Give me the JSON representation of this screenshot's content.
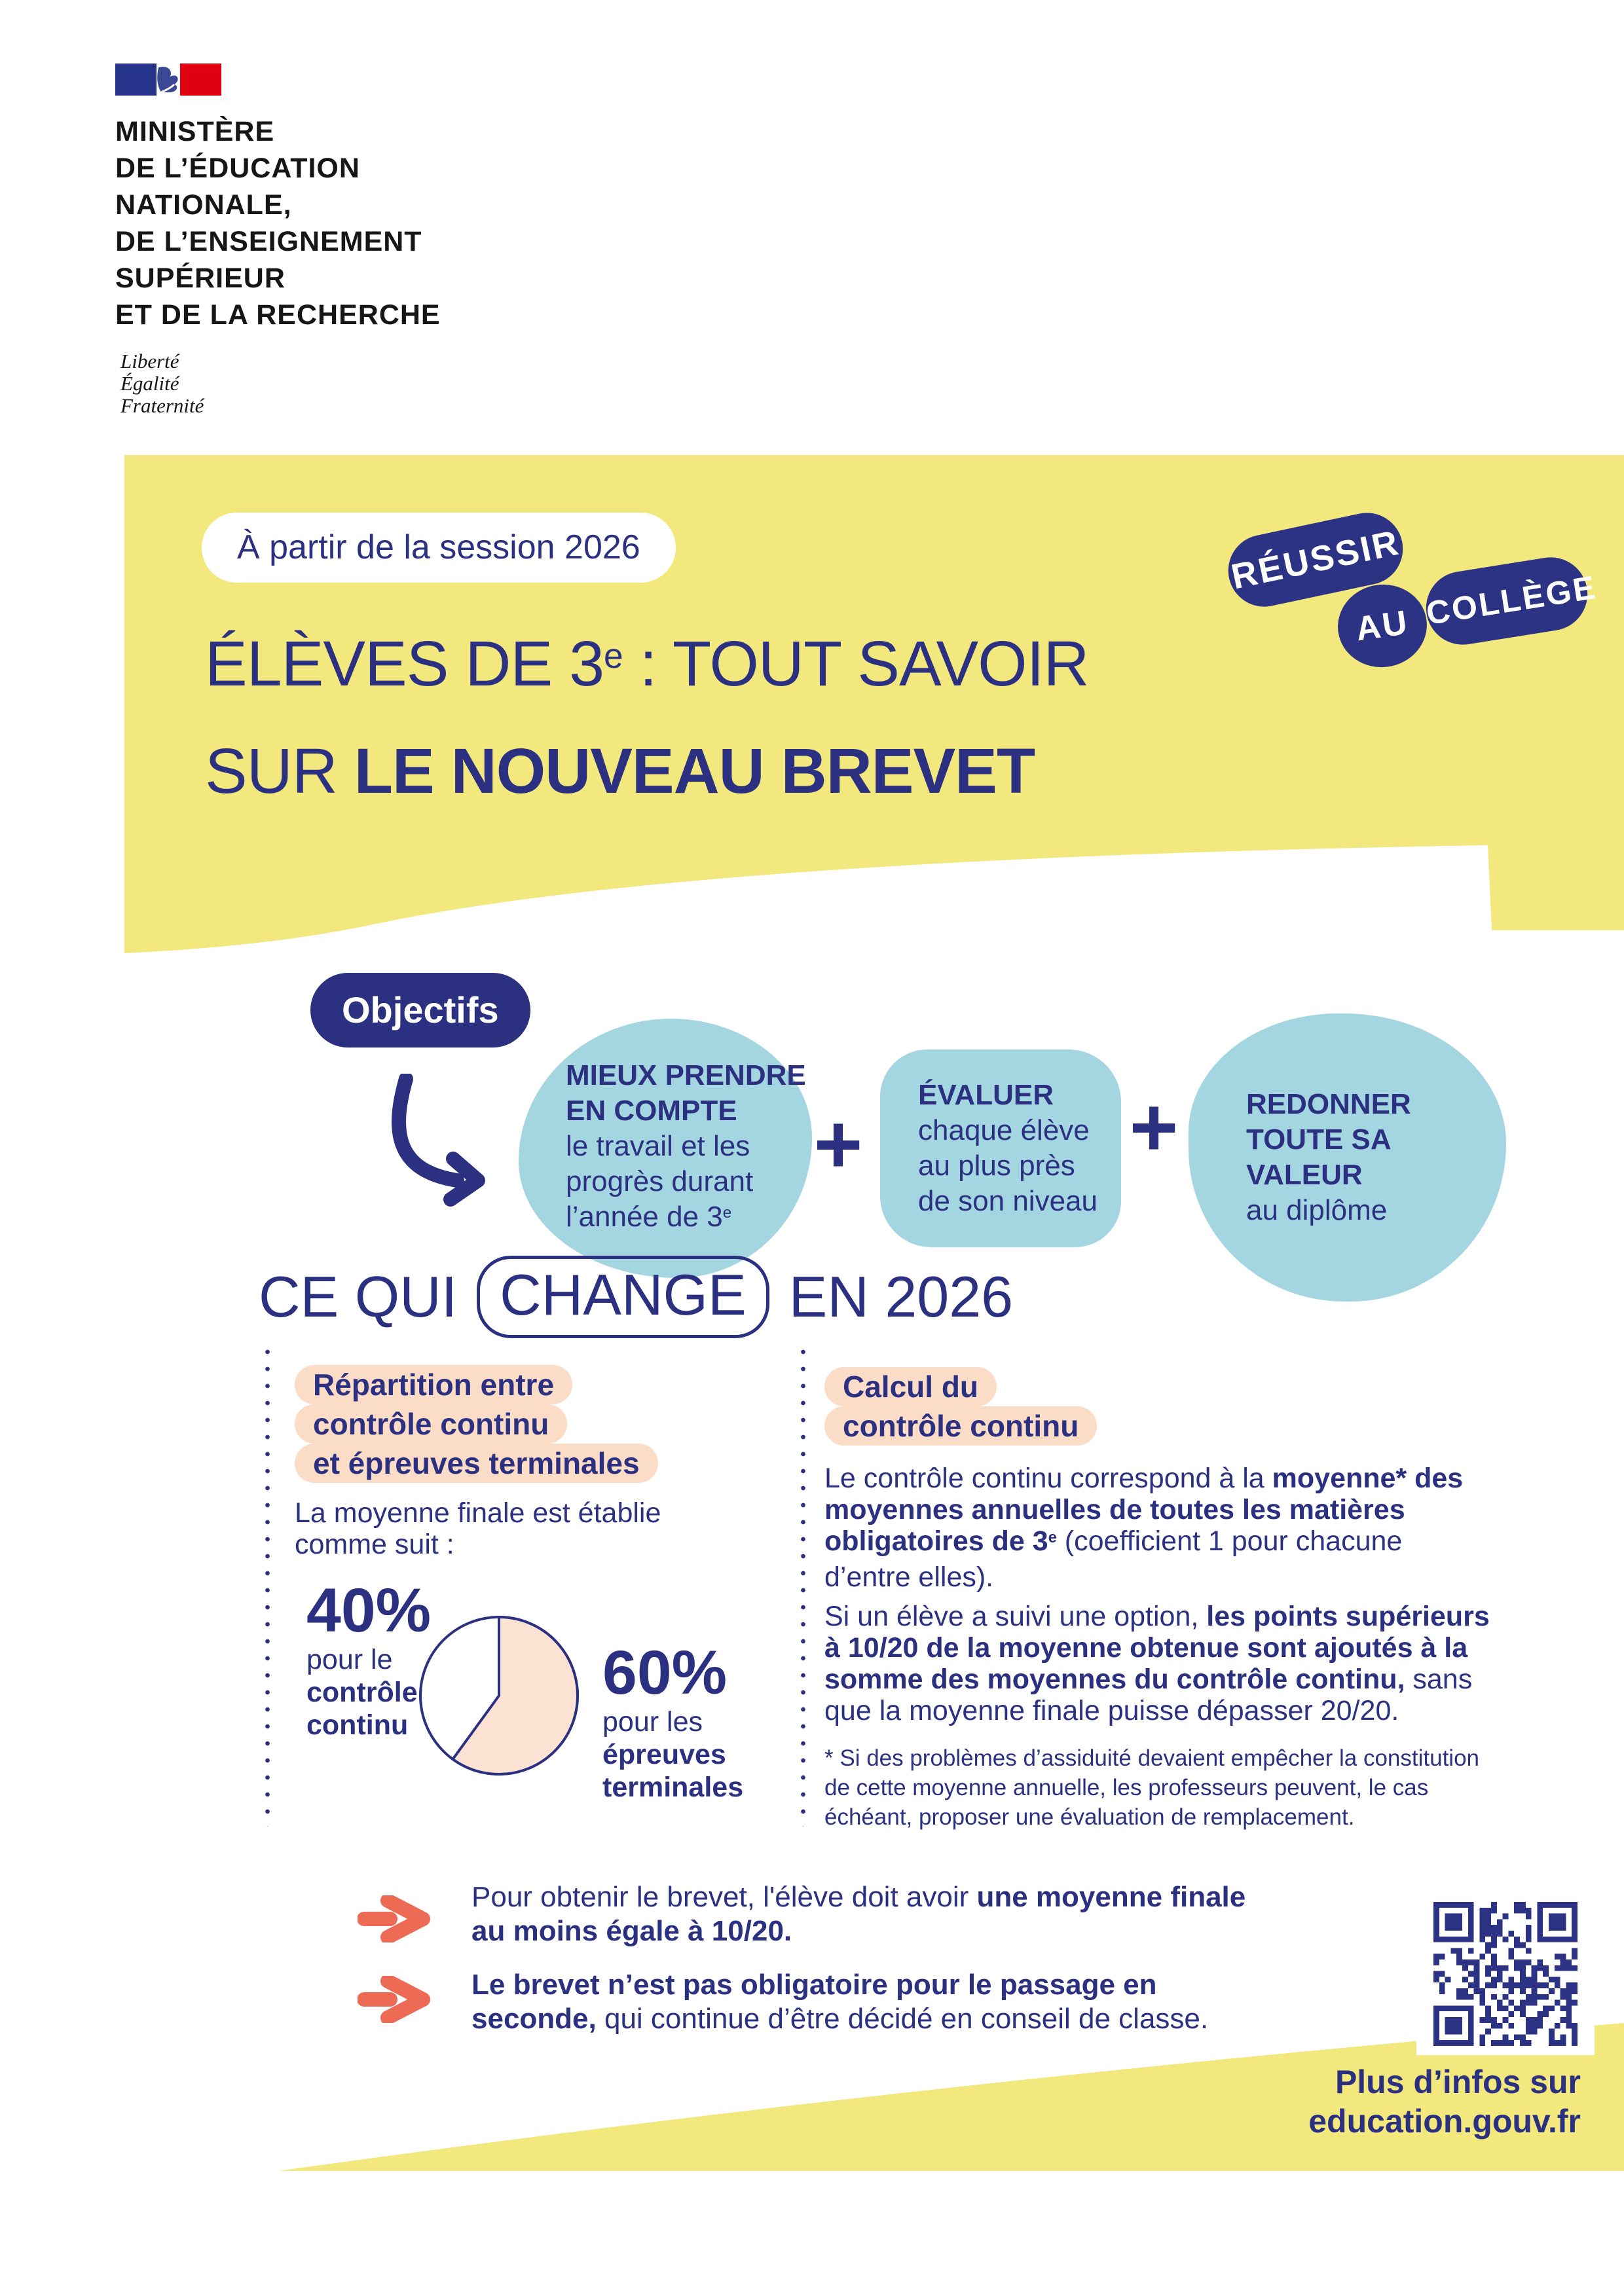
{
  "colors": {
    "yellow": "#F2E87E",
    "dark_blue": "#2B3180",
    "badge_blue": "#2C3384",
    "light_blue": "#A3D6E1",
    "peach": "#FBDCC7",
    "peach_light": "#FBE2D3",
    "orange": "#ED6A55",
    "ink": "#161615"
  },
  "ministry": {
    "lines": [
      "MINISTÈRE",
      "DE L’ÉDUCATION",
      "NATIONALE,",
      "DE L’ENSEIGNEMENT",
      "SUPÉRIEUR",
      "ET DE LA RECHERCHE"
    ],
    "motto": [
      "Liberté",
      "Égalité",
      "Fraternité"
    ]
  },
  "banner": {
    "session": "À partir de la session 2026",
    "badges": [
      "RÉUSSIR",
      "AU",
      "COLLÈGE"
    ],
    "title_line1": [
      {
        "t": "ÉLÈVES DE 3"
      },
      {
        "t": "e",
        "sup": true
      },
      {
        "t": " : TOUT SAVOIR"
      }
    ],
    "title_line2": [
      {
        "t": "SUR "
      },
      {
        "t": "LE NOUVEAU BREVET",
        "b": true
      }
    ]
  },
  "objectives": {
    "label": "Objectifs",
    "plus": "+",
    "items": [
      {
        "lines": [
          {
            "t": "MIEUX PRENDRE",
            "b": true
          },
          {
            "t": "EN COMPTE",
            "b": true
          },
          {
            "t": "le travail et les"
          },
          {
            "t": "progrès durant"
          },
          {
            "t": "l’année de 3",
            "sup": "e"
          }
        ]
      },
      {
        "lines": [
          {
            "t": "ÉVALUER",
            "b": true
          },
          {
            "t": "chaque élève"
          },
          {
            "t": "au plus près"
          },
          {
            "t": "de son niveau"
          }
        ]
      },
      {
        "lines": [
          {
            "t": "REDONNER",
            "b": true
          },
          {
            "t": "TOUTE SA",
            "b": true
          },
          {
            "t": "VALEUR",
            "b": true
          },
          {
            "t": "au diplôme"
          }
        ]
      }
    ]
  },
  "change": {
    "heading_pre": "CE QUI",
    "heading_boxed": "CHANGE",
    "heading_post": "EN 2026",
    "left": {
      "heading_chips": [
        "Répartition entre",
        "contrôle continu",
        "et épreuves terminales"
      ],
      "intro": "La moyenne finale est établie comme suit :",
      "pie_labels": {
        "p40": {
          "pct": "40%",
          "lines": [
            {
              "t": "pour le"
            },
            {
              "t": "contrôle",
              "b": true
            },
            {
              "t": "continu",
              "b": true
            }
          ]
        },
        "p60": {
          "pct": "60%",
          "lines": [
            {
              "t": "pour les"
            },
            {
              "t": "épreuves",
              "b": true
            },
            {
              "t": "terminales",
              "b": true
            }
          ]
        }
      }
    },
    "right": {
      "heading_chips": [
        "Calcul du",
        "contrôle continu"
      ],
      "p1": [
        {
          "t": "Le contrôle continu correspond à la "
        },
        {
          "t": "moyenne*",
          "b": true
        },
        {
          "t": " "
        },
        {
          "t": "des moyennes annuelles de toutes les matières obligatoires de 3",
          "b": true
        },
        {
          "t": "e",
          "b": true,
          "sup": true
        },
        {
          "t": " (coefficient 1 pour chacune d’entre elles)."
        }
      ],
      "p2": [
        {
          "t": "Si un élève a suivi une option, "
        },
        {
          "t": "les points supérieurs à 10/20 de la moyenne obtenue sont ajoutés à la somme des moyennes du contrôle continu,",
          "b": true
        },
        {
          "t": " sans que la moyenne finale puisse dépasser 20/20."
        }
      ],
      "footnote": "* Si des problèmes d’assiduité devaient empêcher la constitution de cette moyenne annuelle, les professeurs peuvent, le cas échéant, proposer une évaluation de remplacement."
    }
  },
  "footer": {
    "items": [
      [
        {
          "t": "Pour obtenir le brevet, l'élève doit avoir "
        },
        {
          "t": "une moyenne finale au moins égale à 10/20.",
          "b": true
        }
      ],
      [
        {
          "t": "Le brevet n’est pas obligatoire pour le passage en seconde,",
          "b": true
        },
        {
          "t": " qui continue d’être décidé en conseil de classe."
        }
      ]
    ],
    "more_info": [
      "Plus d’infos sur",
      "education.gouv.fr"
    ]
  },
  "chart_data": {
    "type": "pie",
    "title": "Répartition de la moyenne finale du brevet",
    "labels": [
      "contrôle continu",
      "épreuves terminales"
    ],
    "values": [
      40,
      60
    ],
    "colors": [
      "#FFFFFF",
      "#FBE2D3"
    ],
    "start_angle_deg": 0,
    "direction": "clockwise_from_top"
  }
}
